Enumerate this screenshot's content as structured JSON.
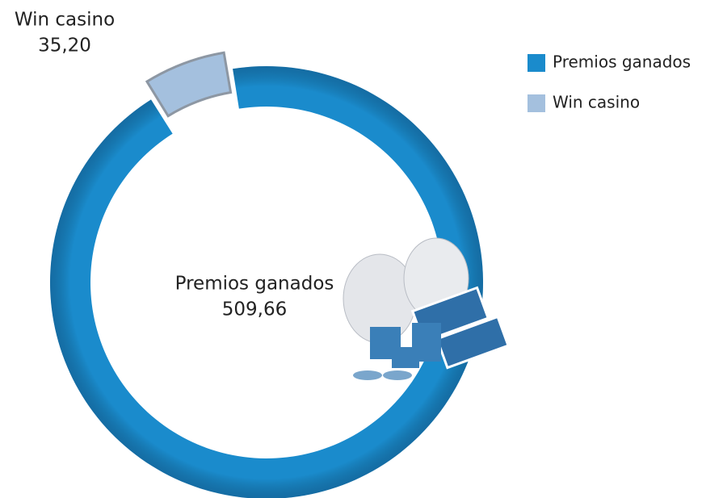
{
  "chart_data": {
    "type": "pie",
    "donut": true,
    "categories": [
      "Premios ganados",
      "Win casino"
    ],
    "values": [
      509.66,
      35.2
    ],
    "value_labels": [
      "509,66",
      "35,20"
    ],
    "colors": [
      "#1a8bcc",
      "#a4c0de"
    ],
    "exploded": [
      false,
      true
    ],
    "legend": "top-right"
  }
}
